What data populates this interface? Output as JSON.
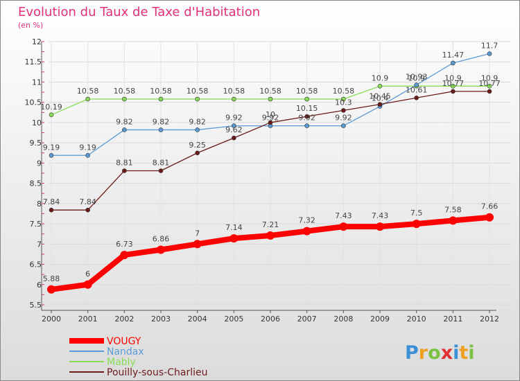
{
  "chart_data": {
    "type": "line",
    "title": "Evolution du Taux de Taxe d'Habitation",
    "subtitle": "(en %)",
    "x": [
      "2000",
      "2001",
      "2002",
      "2003",
      "2004",
      "2005",
      "2006",
      "2007",
      "2008",
      "2009",
      "2010",
      "2011",
      "2012"
    ],
    "ylim": [
      5.5,
      12
    ],
    "yticks": [
      "5.5",
      "6",
      "6.5",
      "7",
      "7.5",
      "8",
      "8.5",
      "9",
      "9.5",
      "10",
      "10.5",
      "11",
      "11.5",
      "12"
    ],
    "grid": true,
    "legend_position": "bottom-left",
    "series": [
      {
        "name": "VOUGY",
        "color": "#ff0000",
        "values": [
          5.88,
          6,
          6.73,
          6.86,
          7,
          7.14,
          7.21,
          7.32,
          7.43,
          7.43,
          7.5,
          7.58,
          7.66
        ],
        "labels": [
          "5.88",
          "6",
          "6.73",
          "6.86",
          "7",
          "7.14",
          "7.21",
          "7.32",
          "7.43",
          "7.43",
          "7.5",
          "7.58",
          "7.66"
        ]
      },
      {
        "name": "Nandax",
        "color": "#5a9bd5",
        "values": [
          9.19,
          9.19,
          9.82,
          9.82,
          9.82,
          9.92,
          9.92,
          9.92,
          9.92,
          10.4,
          10.93,
          11.47,
          11.7
        ],
        "labels": [
          "9.19",
          "9.19",
          "9.82",
          "9.82",
          "9.82",
          "9.92",
          "9.92",
          "9.92",
          "9.92",
          "10.4",
          "10.93",
          "11.47",
          "11.7"
        ]
      },
      {
        "name": "Mably",
        "color": "#88dd55",
        "values": [
          10.19,
          10.58,
          10.58,
          10.58,
          10.58,
          10.58,
          10.58,
          10.58,
          10.58,
          10.9,
          10.9,
          10.9,
          10.9
        ],
        "labels": [
          "10.19",
          "10.58",
          "10.58",
          "10.58",
          "10.58",
          "10.58",
          "10.58",
          "10.58",
          "10.58",
          "10.9",
          "10.9",
          "10.9",
          "10.9"
        ]
      },
      {
        "name": "Pouilly-sous-Charlieu",
        "color": "#6b1a1a",
        "values": [
          7.84,
          7.84,
          8.81,
          8.81,
          9.25,
          9.62,
          10,
          10.15,
          10.3,
          10.45,
          10.61,
          10.77,
          10.77
        ],
        "labels": [
          "7.84",
          "7.84",
          "8.81",
          "8.81",
          "9.25",
          "9.62",
          "10",
          "10.15",
          "10.3",
          "10.45",
          "10.61",
          "10.77",
          "10.77"
        ]
      }
    ]
  },
  "logo": {
    "text": "Proxiti"
  },
  "colors": {
    "title": "#e0307a",
    "background_top": "#ffffff",
    "background_bottom": "#dcdcdc",
    "grid": "#d8d8d8"
  }
}
